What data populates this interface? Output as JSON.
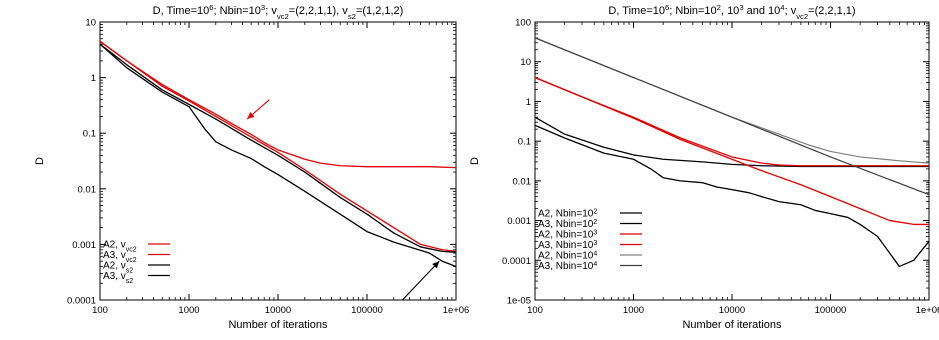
{
  "chart_data": [
    {
      "type": "line",
      "title": {
        "parts": [
          {
            "t": "D, Time=10"
          },
          {
            "t": "6",
            "sup": true
          },
          {
            "t": "; Nbin=10"
          },
          {
            "t": "3",
            "sup": true
          },
          {
            "t": "; v"
          },
          {
            "t": "vc2",
            "sub": true
          },
          {
            "t": "=(2,2,1,1), v"
          },
          {
            "t": "s2",
            "sub": true
          },
          {
            "t": "=(1,2,1,2)"
          }
        ]
      },
      "xlabel": "Number of iterations",
      "ylabel": "D",
      "xscale": "log",
      "yscale": "log",
      "xlim": [
        100,
        1000000
      ],
      "ylim": [
        0.0001,
        10
      ],
      "xticks": [
        {
          "v": 100,
          "label": "100"
        },
        {
          "v": 1000,
          "label": "1000"
        },
        {
          "v": 10000,
          "label": "10000"
        },
        {
          "v": 100000,
          "label": "100000"
        },
        {
          "v": 1000000,
          "label": "1e+06"
        }
      ],
      "yticks": [
        {
          "v": 0.0001,
          "label": "0.0001"
        },
        {
          "v": 0.001,
          "label": "0.001"
        },
        {
          "v": 0.01,
          "label": "0.01"
        },
        {
          "v": 0.1,
          "label": "0.1"
        },
        {
          "v": 1,
          "label": "1"
        },
        {
          "v": 10,
          "label": "10"
        }
      ],
      "legend_position": "bottom-left",
      "series": [
        {
          "label": [
            {
              "t": "A2, v"
            },
            {
              "t": "vc2",
              "sub": true
            }
          ],
          "color": "#e00000",
          "width": 1.3,
          "x": [
            100,
            200,
            500,
            1000,
            2000,
            3000,
            5000,
            7000,
            10000,
            15000,
            20000,
            30000,
            50000,
            100000,
            200000,
            500000,
            1000000
          ],
          "y": [
            4.5,
            2.0,
            0.75,
            0.4,
            0.22,
            0.15,
            0.095,
            0.068,
            0.05,
            0.04,
            0.034,
            0.029,
            0.026,
            0.025,
            0.025,
            0.025,
            0.024
          ]
        },
        {
          "label": [
            {
              "t": "A3, v"
            },
            {
              "t": "vc2",
              "sub": true
            }
          ],
          "color": "#e00000",
          "width": 1.3,
          "x": [
            100,
            200,
            500,
            1000,
            2000,
            5000,
            10000,
            20000,
            50000,
            100000,
            200000,
            400000,
            700000,
            1000000
          ],
          "y": [
            4.5,
            2.0,
            0.7,
            0.38,
            0.2,
            0.085,
            0.045,
            0.022,
            0.008,
            0.004,
            0.002,
            0.001,
            0.0008,
            0.00075
          ]
        },
        {
          "label": [
            {
              "t": "A2, v"
            },
            {
              "t": "s2",
              "sub": true
            }
          ],
          "color": "#000000",
          "width": 1.3,
          "x": [
            100,
            200,
            500,
            1000,
            2000,
            5000,
            10000,
            20000,
            50000,
            100000,
            200000,
            400000,
            700000,
            1000000
          ],
          "y": [
            4.0,
            1.7,
            0.6,
            0.33,
            0.18,
            0.075,
            0.04,
            0.02,
            0.007,
            0.0035,
            0.0016,
            0.0009,
            0.00075,
            0.00072
          ]
        },
        {
          "label": [
            {
              "t": "A3, v"
            },
            {
              "t": "s2",
              "sub": true
            }
          ],
          "color": "#000000",
          "width": 1.3,
          "x": [
            100,
            200,
            500,
            1000,
            1500,
            2000,
            3000,
            5000,
            7000,
            10000,
            20000,
            50000,
            100000,
            200000,
            500000,
            700000,
            1000000
          ],
          "y": [
            4.0,
            1.5,
            0.55,
            0.3,
            0.12,
            0.07,
            0.05,
            0.035,
            0.025,
            0.018,
            0.009,
            0.0035,
            0.0017,
            0.0011,
            0.0007,
            0.0005,
            0.0004
          ]
        }
      ],
      "annotations": [
        {
          "type": "arrow",
          "color": "#e00000",
          "from": [
            8000,
            0.4
          ],
          "to": [
            4500,
            0.18
          ]
        },
        {
          "type": "arrow",
          "color": "#000000",
          "from": [
            250000,
            0.0001
          ],
          "to": [
            650000,
            0.0005
          ]
        }
      ]
    },
    {
      "type": "line",
      "title": {
        "parts": [
          {
            "t": "D, Time=10"
          },
          {
            "t": "6",
            "sup": true
          },
          {
            "t": "; Nbin=10"
          },
          {
            "t": "2",
            "sup": true
          },
          {
            "t": ", 10"
          },
          {
            "t": "3",
            "sup": true
          },
          {
            "t": " and 10"
          },
          {
            "t": "4",
            "sup": true
          },
          {
            "t": "; v"
          },
          {
            "t": "vc2",
            "sub": true
          },
          {
            "t": "=(2,2,1,1)"
          }
        ]
      },
      "xlabel": "Number of iterations",
      "ylabel": "D",
      "xscale": "log",
      "yscale": "log",
      "xlim": [
        100,
        1000000
      ],
      "ylim": [
        1e-05,
        100
      ],
      "xticks": [
        {
          "v": 100,
          "label": "100"
        },
        {
          "v": 1000,
          "label": "1000"
        },
        {
          "v": 10000,
          "label": "10000"
        },
        {
          "v": 100000,
          "label": "100000"
        },
        {
          "v": 1000000,
          "label": "1e+06"
        }
      ],
      "yticks": [
        {
          "v": 1e-05,
          "label": "1e-05"
        },
        {
          "v": 0.0001,
          "label": "0.0001"
        },
        {
          "v": 0.001,
          "label": "0.001"
        },
        {
          "v": 0.01,
          "label": "0.01"
        },
        {
          "v": 0.1,
          "label": "0.1"
        },
        {
          "v": 1,
          "label": "1"
        },
        {
          "v": 10,
          "label": "10"
        },
        {
          "v": 100,
          "label": "100"
        }
      ],
      "legend_position": "bottom-left",
      "series": [
        {
          "label": [
            {
              "t": "A2, Nbin=10"
            },
            {
              "t": "2",
              "sup": true
            }
          ],
          "color": "#000000",
          "width": 1.3,
          "x": [
            100,
            200,
            500,
            1000,
            2000,
            5000,
            10000,
            20000,
            50000,
            100000,
            200000,
            500000,
            1000000
          ],
          "y": [
            0.4,
            0.15,
            0.07,
            0.045,
            0.035,
            0.03,
            0.026,
            0.024,
            0.023,
            0.023,
            0.023,
            0.023,
            0.023
          ]
        },
        {
          "label": [
            {
              "t": "A3, Nbin=10"
            },
            {
              "t": "2",
              "sup": true
            }
          ],
          "color": "#000000",
          "width": 1.3,
          "x": [
            100,
            200,
            500,
            1000,
            1500,
            2000,
            3000,
            5000,
            7000,
            10000,
            15000,
            20000,
            30000,
            50000,
            70000,
            100000,
            150000,
            200000,
            300000,
            500000,
            700000,
            1000000
          ],
          "y": [
            0.25,
            0.12,
            0.05,
            0.035,
            0.02,
            0.012,
            0.01,
            0.009,
            0.007,
            0.006,
            0.005,
            0.004,
            0.003,
            0.0025,
            0.0018,
            0.0015,
            0.0012,
            0.0008,
            0.0004,
            7e-05,
            0.0001,
            0.0003
          ]
        },
        {
          "label": [
            {
              "t": "A2, Nbin=10"
            },
            {
              "t": "3",
              "sup": true
            }
          ],
          "color": "#e00000",
          "width": 1.3,
          "x": [
            100,
            300,
            1000,
            3000,
            10000,
            20000,
            30000,
            50000,
            100000,
            300000,
            1000000
          ],
          "y": [
            4.0,
            1.3,
            0.4,
            0.12,
            0.04,
            0.028,
            0.025,
            0.024,
            0.024,
            0.024,
            0.024
          ]
        },
        {
          "label": [
            {
              "t": "A3, Nbin=10"
            },
            {
              "t": "3",
              "sup": true
            }
          ],
          "color": "#e00000",
          "width": 1.3,
          "x": [
            100,
            300,
            1000,
            3000,
            10000,
            20000,
            50000,
            100000,
            200000,
            400000,
            700000,
            1000000
          ],
          "y": [
            4.0,
            1.3,
            0.38,
            0.11,
            0.035,
            0.018,
            0.008,
            0.004,
            0.002,
            0.001,
            0.0008,
            0.0008
          ]
        },
        {
          "label": [
            {
              "t": "A2, Nbin=10"
            },
            {
              "t": "4",
              "sup": true
            }
          ],
          "color": "#808080",
          "width": 1.2,
          "x": [
            100,
            1000,
            10000,
            30000,
            60000,
            100000,
            200000,
            500000,
            1000000
          ],
          "y": [
            40,
            4.0,
            0.4,
            0.15,
            0.08,
            0.055,
            0.04,
            0.032,
            0.028
          ]
        },
        {
          "label": [
            {
              "t": "A3, Nbin=10"
            },
            {
              "t": "4",
              "sup": true
            }
          ],
          "color": "#404040",
          "width": 1.2,
          "x": [
            100,
            1000,
            10000,
            100000,
            1000000
          ],
          "y": [
            40,
            4.0,
            0.4,
            0.04,
            0.0045
          ]
        }
      ]
    }
  ]
}
